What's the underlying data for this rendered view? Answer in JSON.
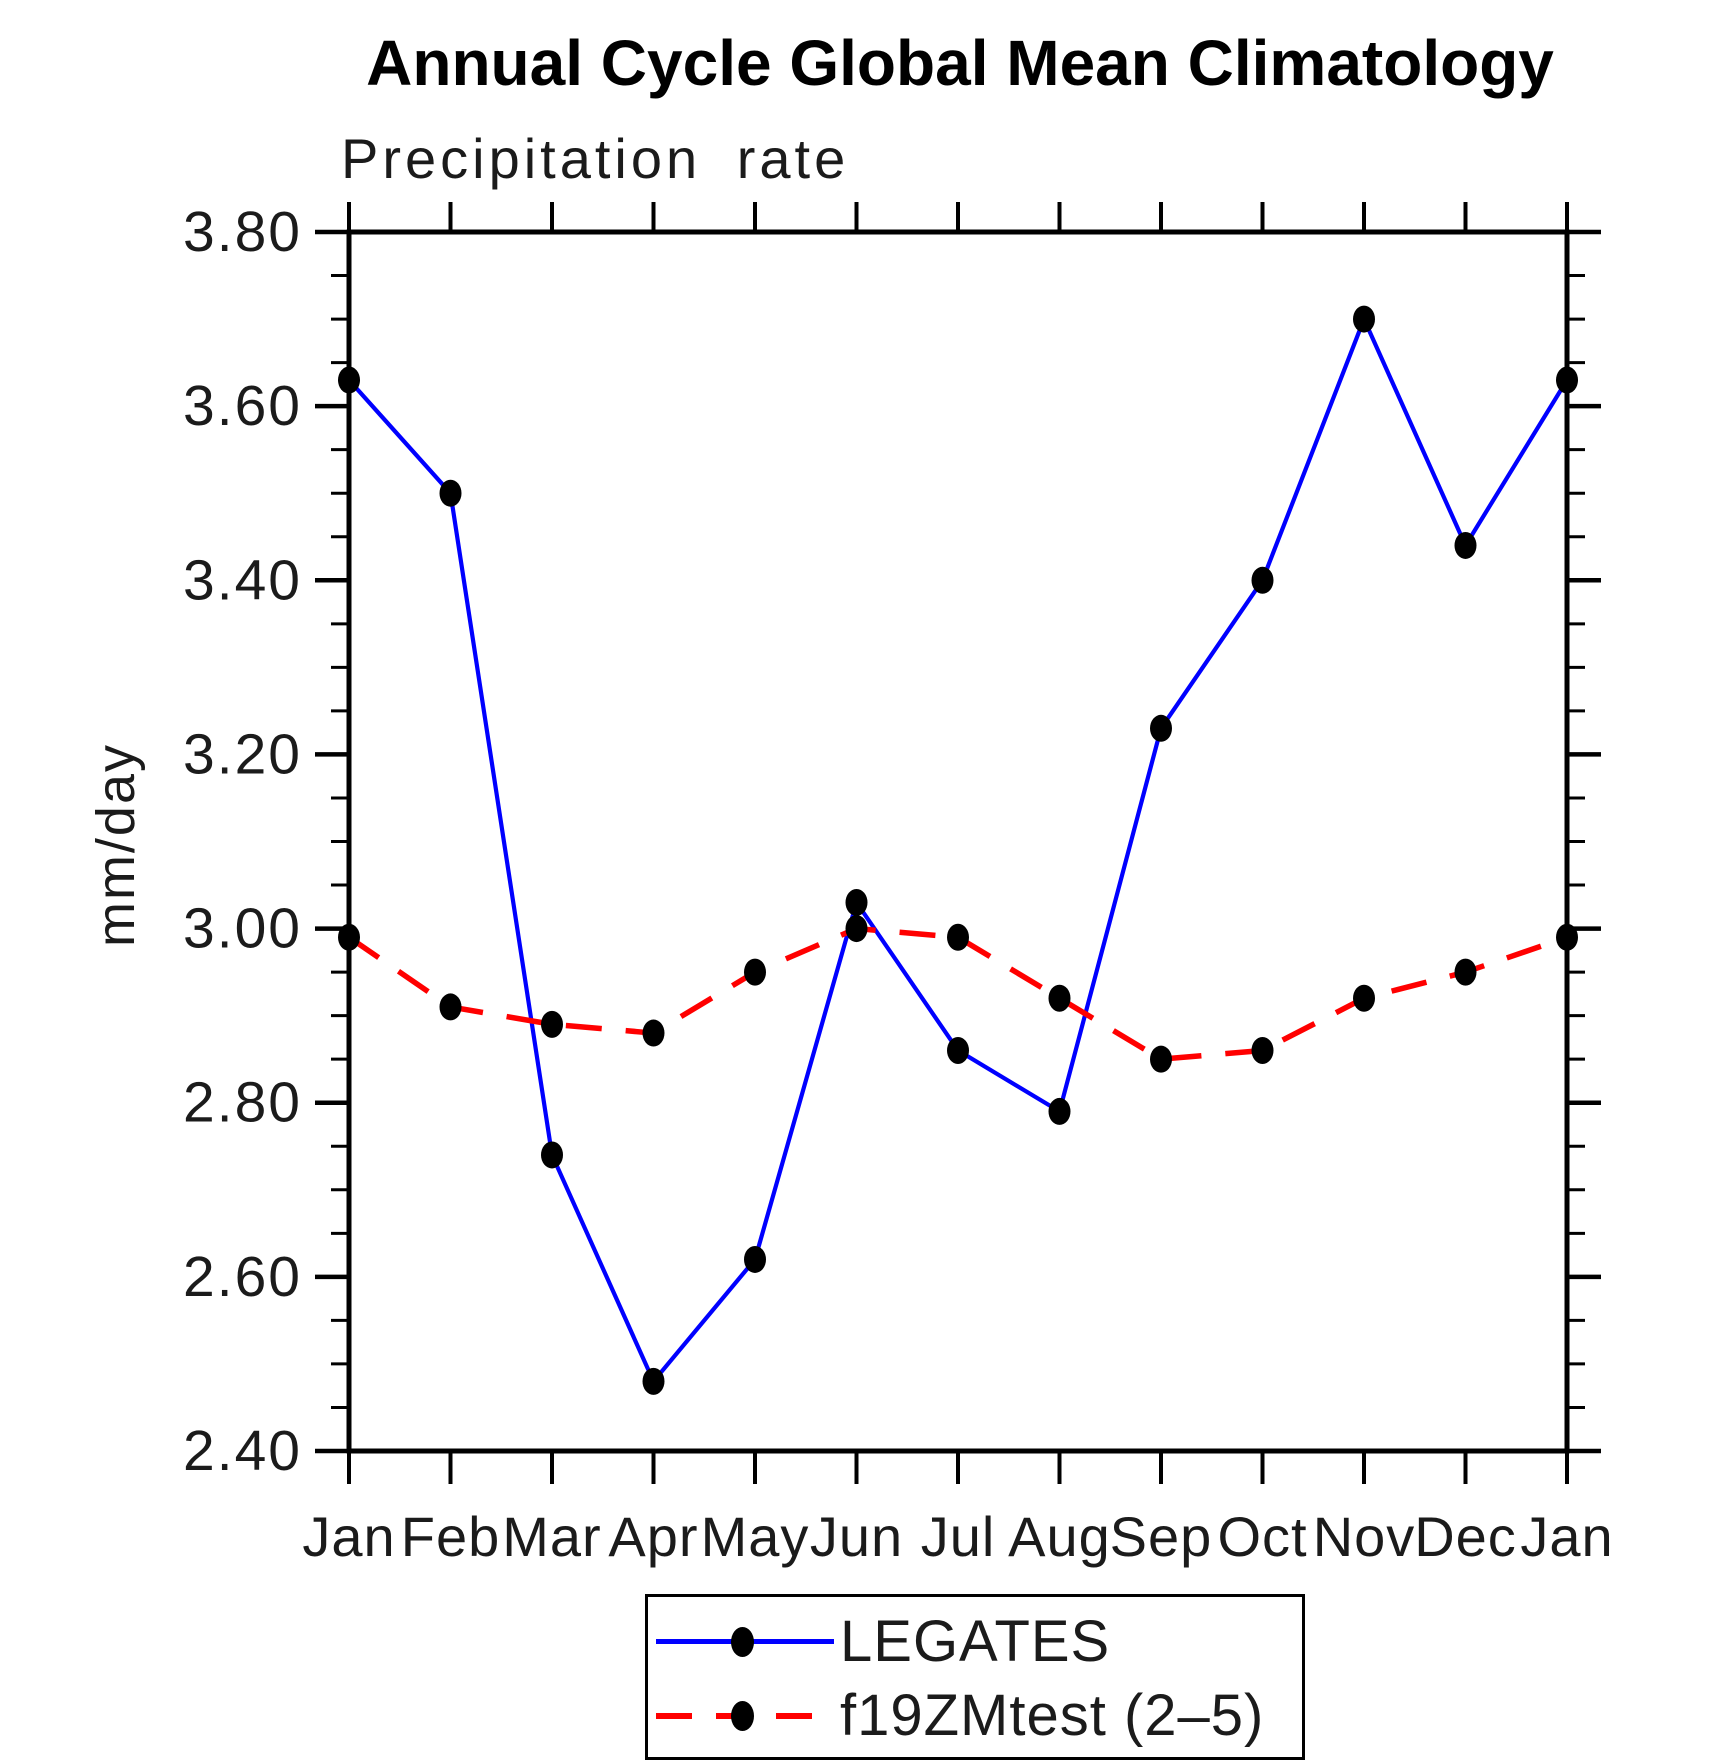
{
  "chart_data": {
    "type": "line",
    "title": "Annual Cycle Global Mean Climatology",
    "subtitle": "Precipitation rate",
    "ylabel": "mm/day",
    "xlabel": "",
    "categories": [
      "Jan",
      "Feb",
      "Mar",
      "Apr",
      "May",
      "Jun",
      "Jul",
      "Aug",
      "Sep",
      "Oct",
      "Nov",
      "Dec",
      "Jan"
    ],
    "ylim": [
      2.4,
      3.8
    ],
    "y_major_step": 0.2,
    "y_minor_step": 0.05,
    "y_tick_labels": [
      "2.40",
      "2.60",
      "2.80",
      "3.00",
      "3.20",
      "3.40",
      "3.60",
      "3.80"
    ],
    "grid": false,
    "legend_position": "bottom-center",
    "axis_color": "#000000",
    "text_color": "#1b1b1b",
    "marker_color": "#000000",
    "series": [
      {
        "name": "LEGATES",
        "color": "#0000ff",
        "line_style": "solid",
        "marker": "filled-circle",
        "values": [
          3.63,
          3.5,
          2.74,
          2.48,
          2.62,
          3.03,
          2.86,
          2.79,
          3.23,
          3.4,
          3.7,
          3.44,
          3.63
        ]
      },
      {
        "name": "f19ZMtest (2–5)",
        "color": "#ff0000",
        "line_style": "dashed",
        "marker": "filled-circle",
        "values": [
          2.99,
          2.91,
          2.89,
          2.88,
          2.95,
          3.0,
          2.99,
          2.92,
          2.85,
          2.86,
          2.92,
          2.95,
          2.99
        ]
      }
    ]
  }
}
